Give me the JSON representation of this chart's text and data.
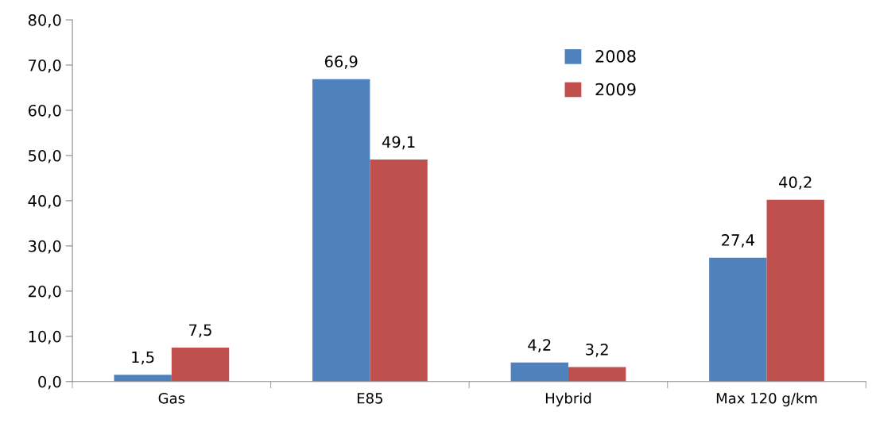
{
  "chart_data": {
    "type": "bar",
    "categories": [
      "Gas",
      "E85",
      "Hybrid",
      "Max 120 g/km"
    ],
    "series": [
      {
        "name": "2008",
        "color": "#4f81bd",
        "values": [
          1.5,
          66.9,
          4.2,
          27.4
        ],
        "value_labels": [
          "1,5",
          "66,9",
          "4,2",
          "27,4"
        ]
      },
      {
        "name": "2009",
        "color": "#c0504d",
        "values": [
          7.5,
          49.1,
          3.2,
          40.2
        ],
        "value_labels": [
          "7,5",
          "49,1",
          "3,2",
          "40,2"
        ]
      }
    ],
    "ylim": [
      0,
      80
    ],
    "yticks": [
      {
        "value": 0,
        "label": "0,0"
      },
      {
        "value": 10,
        "label": "10,0"
      },
      {
        "value": 20,
        "label": "20,0"
      },
      {
        "value": 30,
        "label": "30,0"
      },
      {
        "value": 40,
        "label": "40,0"
      },
      {
        "value": 50,
        "label": "50,0"
      },
      {
        "value": 60,
        "label": "60,0"
      },
      {
        "value": 70,
        "label": "70,0"
      },
      {
        "value": 80,
        "label": "80,0"
      }
    ],
    "grid": false,
    "legend": "top right"
  }
}
